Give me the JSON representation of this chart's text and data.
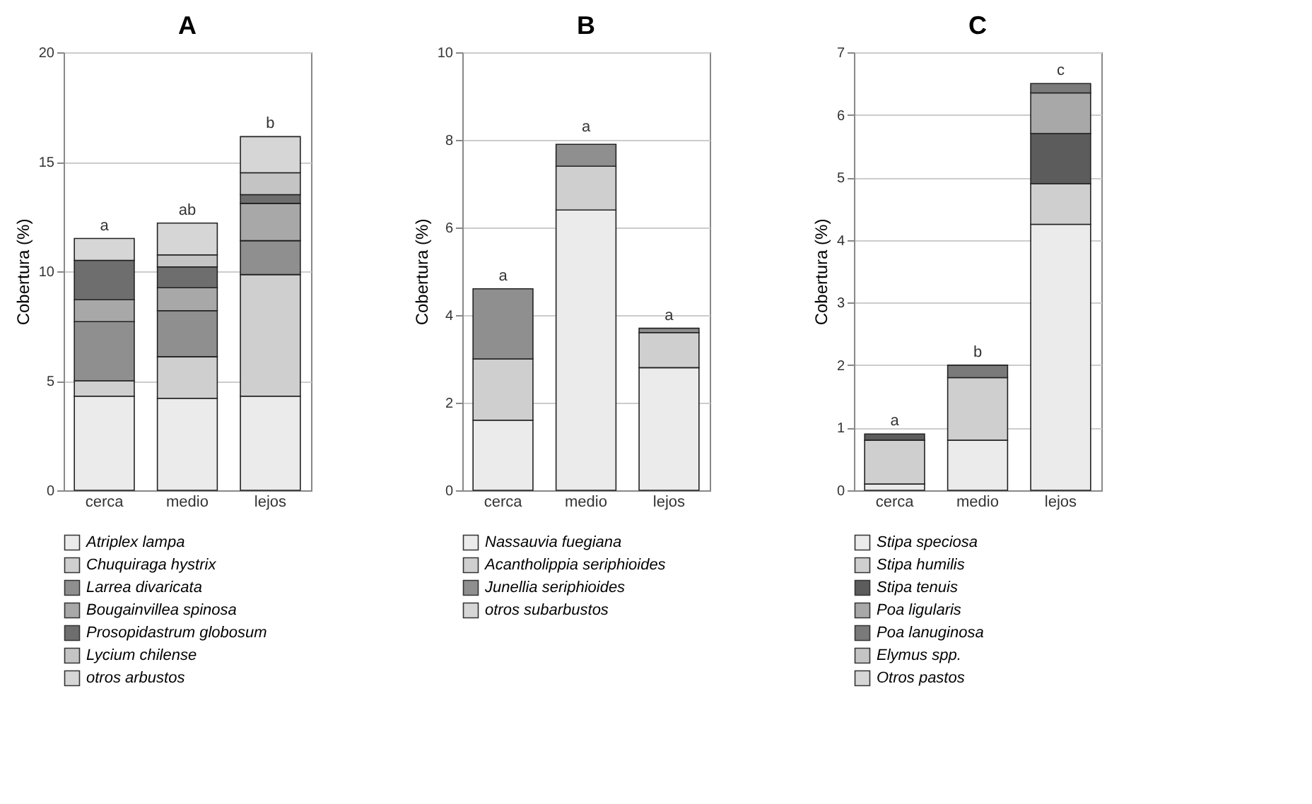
{
  "chart_data": [
    {
      "type": "bar",
      "title": "A",
      "ylabel": "Cobertura (%)",
      "categories": [
        "cerca",
        "medio",
        "lejos"
      ],
      "stacked": true,
      "ylim": [
        0,
        20
      ],
      "yticks": [
        0,
        5,
        10,
        15,
        20
      ],
      "grid": "y",
      "legend": "bottom",
      "series": [
        {
          "name": "Atriplex lampa",
          "color": "#ebebeb",
          "values": [
            4.3,
            4.2,
            4.3
          ]
        },
        {
          "name": "Chuquiraga hystrix",
          "color": "#cfcfcf",
          "values": [
            0.7,
            1.9,
            5.55
          ]
        },
        {
          "name": "Larrea divaricata",
          "color": "#8f8f8f",
          "values": [
            2.7,
            2.1,
            1.55
          ]
        },
        {
          "name": "Bougainvillea spinosa",
          "color": "#a8a8a8",
          "values": [
            1.0,
            1.05,
            1.7
          ]
        },
        {
          "name": "Prosopidastrum globosum",
          "color": "#6e6e6e",
          "values": [
            1.8,
            0.95,
            0.4
          ]
        },
        {
          "name": "Lycium chilense",
          "color": "#c4c4c4",
          "values": [
            0,
            0.55,
            1.0
          ]
        },
        {
          "name": "otros arbustos",
          "color": "#d6d6d6",
          "values": [
            1.0,
            1.45,
            1.65
          ]
        }
      ],
      "annotations": [
        {
          "text": "a",
          "x": "cerca",
          "y": 11.5
        },
        {
          "text": "ab",
          "x": "medio",
          "y": 12.2
        },
        {
          "text": "b",
          "x": "lejos",
          "y": 16.15
        }
      ]
    },
    {
      "type": "bar",
      "title": "B",
      "ylabel": "Cobertura (%)",
      "categories": [
        "cerca",
        "medio",
        "lejos"
      ],
      "stacked": true,
      "ylim": [
        0,
        10
      ],
      "yticks": [
        0,
        2,
        4,
        6,
        8,
        10
      ],
      "grid": "y",
      "legend": "bottom",
      "series": [
        {
          "name": "Nassauvia fuegiana",
          "color": "#ebebeb",
          "values": [
            1.6,
            6.4,
            2.8
          ]
        },
        {
          "name": "Acantholippia seriphioides",
          "color": "#cfcfcf",
          "values": [
            1.4,
            1.0,
            0.8
          ]
        },
        {
          "name": "Junellia seriphioides",
          "color": "#8f8f8f",
          "values": [
            1.6,
            0.5,
            0.1
          ]
        },
        {
          "name": "otros subarbustos",
          "color": "#d6d6d6",
          "values": [
            0,
            0,
            0
          ]
        }
      ],
      "annotations": [
        {
          "text": "a",
          "x": "cerca",
          "y": 4.6
        },
        {
          "text": "a",
          "x": "medio",
          "y": 8.0
        },
        {
          "text": "a",
          "x": "lejos",
          "y": 3.7
        }
      ]
    },
    {
      "type": "bar",
      "title": "C",
      "ylabel": "Cobertura (%)",
      "categories": [
        "cerca",
        "medio",
        "lejos"
      ],
      "stacked": true,
      "ylim": [
        0,
        7
      ],
      "yticks": [
        0,
        1,
        2,
        3,
        4,
        5,
        6,
        7
      ],
      "grid": "y",
      "legend": "bottom",
      "series": [
        {
          "name": "Stipa speciosa",
          "color": "#ebebeb",
          "values": [
            0.1,
            0.8,
            4.25
          ]
        },
        {
          "name": "Stipa humilis",
          "color": "#cfcfcf",
          "values": [
            0.7,
            1.0,
            0.65
          ]
        },
        {
          "name": "Stipa tenuis",
          "color": "#5c5c5c",
          "values": [
            0.1,
            0,
            0.8
          ]
        },
        {
          "name": "Poa ligularis",
          "color": "#a8a8a8",
          "values": [
            0,
            0,
            0.65
          ]
        },
        {
          "name": "Poa lanuginosa",
          "color": "#7a7a7a",
          "values": [
            0,
            0.2,
            0.15
          ]
        },
        {
          "name": "Elymus spp.",
          "color": "#c4c4c4",
          "values": [
            0,
            0,
            0
          ]
        },
        {
          "name": "Otros pastos",
          "color": "#d6d6d6",
          "values": [
            0,
            0,
            0
          ]
        }
      ],
      "annotations": [
        {
          "text": "a",
          "x": "cerca",
          "y": 0.9
        },
        {
          "text": "b",
          "x": "medio",
          "y": 2.0
        },
        {
          "text": "c",
          "x": "lejos",
          "y": 6.5
        }
      ]
    }
  ]
}
